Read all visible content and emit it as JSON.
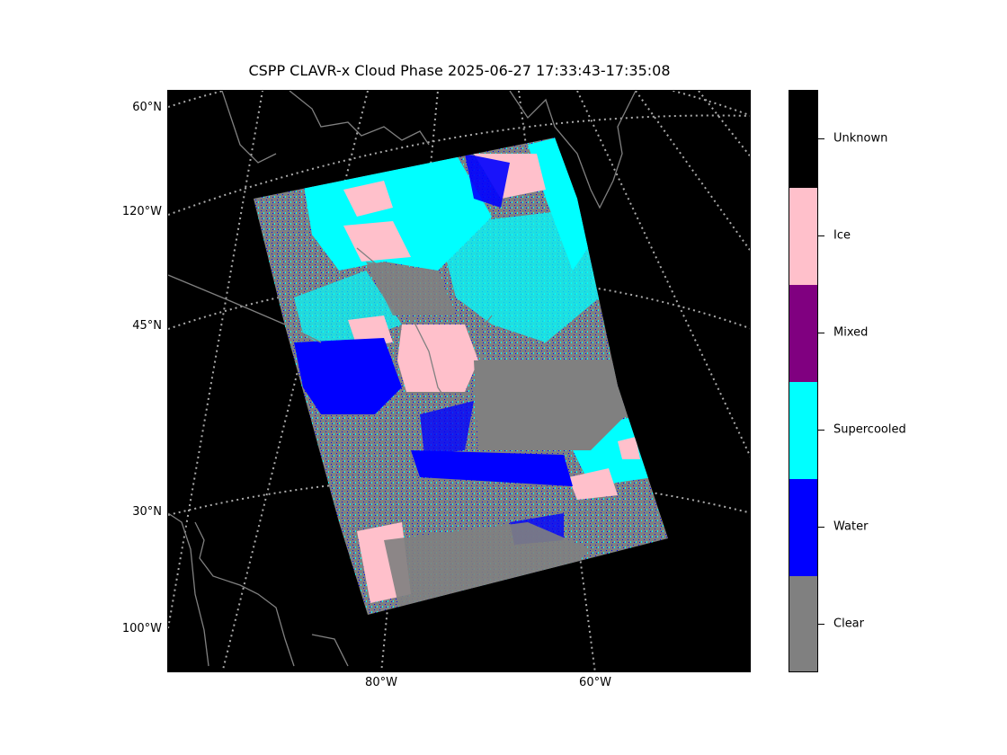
{
  "title": "CSPP CLAVR-x Cloud Phase 2025-06-27 17:33:43-17:35:08",
  "map": {
    "background": "#000000",
    "coastline_color": "#808080",
    "graticule_color": "#aaaaaa",
    "lat_labels": [
      {
        "text": "60°N",
        "lat": 60
      },
      {
        "text": "120°W",
        "lon": -120
      },
      {
        "text": "45°N",
        "lat": 45
      },
      {
        "text": "30°N",
        "lat": 30
      },
      {
        "text": "100°W",
        "lon": -100
      }
    ],
    "lon_labels": [
      {
        "text": "80°W",
        "lon": -80
      },
      {
        "text": "60°W",
        "lon": -60
      }
    ]
  },
  "legend": {
    "categories": [
      {
        "label": "Unknown",
        "color": "#000000"
      },
      {
        "label": "Ice",
        "color": "#ffc0cb"
      },
      {
        "label": "Mixed",
        "color": "#800080"
      },
      {
        "label": "Supercooled",
        "color": "#00ffff"
      },
      {
        "label": "Water",
        "color": "#0000ff"
      },
      {
        "label": "Clear",
        "color": "#808080"
      }
    ]
  }
}
